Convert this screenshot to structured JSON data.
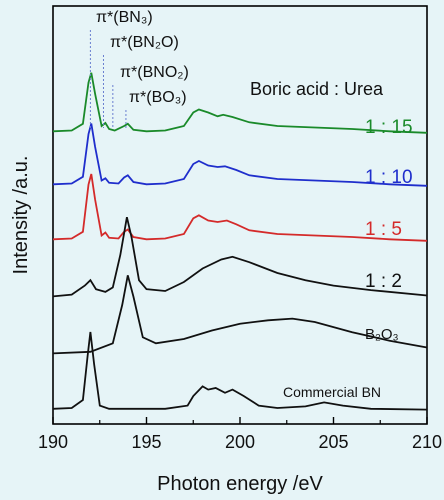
{
  "chart_data": {
    "type": "line",
    "xlabel": "Photon energy /eV",
    "ylabel": "Intensity /a.u.",
    "xlim": [
      190,
      210
    ],
    "xticks": [
      "190",
      "195",
      "200",
      "205",
      "210"
    ],
    "yticks": "none",
    "grid": false,
    "legend_title": "Boric acid : Urea",
    "peak_annotations": [
      {
        "text": "π*(BN₃)",
        "x": 192.0
      },
      {
        "text": "π*(BN₂O)",
        "x": 192.7
      },
      {
        "text": "π*(BNO₂)",
        "x": 193.2
      },
      {
        "text": "π*(BO₃)",
        "x": 193.9
      }
    ],
    "series": [
      {
        "name": "1 : 15",
        "color": "#1a8a2a",
        "points": [
          [
            190,
            0.05
          ],
          [
            191,
            0.06
          ],
          [
            191.6,
            0.15
          ],
          [
            191.9,
            0.7
          ],
          [
            192.05,
            0.83
          ],
          [
            192.25,
            0.55
          ],
          [
            192.6,
            0.12
          ],
          [
            192.8,
            0.16
          ],
          [
            193.0,
            0.08
          ],
          [
            193.3,
            0.06
          ],
          [
            193.8,
            0.12
          ],
          [
            194.0,
            0.15
          ],
          [
            194.3,
            0.07
          ],
          [
            195,
            0.05
          ],
          [
            196,
            0.06
          ],
          [
            197,
            0.12
          ],
          [
            197.5,
            0.3
          ],
          [
            197.8,
            0.34
          ],
          [
            198.3,
            0.3
          ],
          [
            198.8,
            0.25
          ],
          [
            199.1,
            0.27
          ],
          [
            199.6,
            0.24
          ],
          [
            200.5,
            0.17
          ],
          [
            202,
            0.12
          ],
          [
            204,
            0.1
          ],
          [
            206,
            0.08
          ],
          [
            208,
            0.05
          ],
          [
            210,
            0.03
          ]
        ]
      },
      {
        "name": "1 : 10",
        "color": "#1f2ecc",
        "points": [
          [
            190,
            0.05
          ],
          [
            191,
            0.06
          ],
          [
            191.6,
            0.15
          ],
          [
            191.9,
            0.72
          ],
          [
            192.05,
            0.86
          ],
          [
            192.25,
            0.55
          ],
          [
            192.6,
            0.1
          ],
          [
            192.8,
            0.13
          ],
          [
            193.0,
            0.07
          ],
          [
            193.5,
            0.06
          ],
          [
            193.8,
            0.14
          ],
          [
            194.0,
            0.17
          ],
          [
            194.3,
            0.08
          ],
          [
            195,
            0.05
          ],
          [
            196,
            0.06
          ],
          [
            197,
            0.12
          ],
          [
            197.5,
            0.32
          ],
          [
            197.8,
            0.36
          ],
          [
            198.3,
            0.3
          ],
          [
            198.8,
            0.28
          ],
          [
            199.2,
            0.29
          ],
          [
            199.8,
            0.24
          ],
          [
            200.5,
            0.17
          ],
          [
            202,
            0.12
          ],
          [
            204,
            0.1
          ],
          [
            206,
            0.08
          ],
          [
            208,
            0.05
          ],
          [
            210,
            0.03
          ]
        ]
      },
      {
        "name": "1 : 5",
        "color": "#d42a2a",
        "points": [
          [
            190,
            0.05
          ],
          [
            191,
            0.06
          ],
          [
            191.6,
            0.15
          ],
          [
            191.9,
            0.78
          ],
          [
            192.05,
            0.92
          ],
          [
            192.25,
            0.58
          ],
          [
            192.6,
            0.1
          ],
          [
            192.8,
            0.14
          ],
          [
            193.0,
            0.07
          ],
          [
            193.5,
            0.06
          ],
          [
            193.8,
            0.15
          ],
          [
            194.0,
            0.18
          ],
          [
            194.3,
            0.08
          ],
          [
            195,
            0.05
          ],
          [
            196,
            0.06
          ],
          [
            197,
            0.12
          ],
          [
            197.5,
            0.33
          ],
          [
            197.8,
            0.37
          ],
          [
            198.3,
            0.3
          ],
          [
            198.8,
            0.28
          ],
          [
            199.3,
            0.3
          ],
          [
            199.8,
            0.25
          ],
          [
            200.5,
            0.17
          ],
          [
            202,
            0.12
          ],
          [
            204,
            0.1
          ],
          [
            206,
            0.08
          ],
          [
            208,
            0.05
          ],
          [
            210,
            0.03
          ]
        ]
      },
      {
        "name": "1 : 2",
        "color": "#111111",
        "points": [
          [
            190,
            0.04
          ],
          [
            191,
            0.06
          ],
          [
            191.7,
            0.16
          ],
          [
            192.0,
            0.22
          ],
          [
            192.3,
            0.12
          ],
          [
            192.8,
            0.09
          ],
          [
            193.2,
            0.14
          ],
          [
            193.6,
            0.5
          ],
          [
            193.95,
            0.92
          ],
          [
            194.2,
            0.7
          ],
          [
            194.6,
            0.22
          ],
          [
            195,
            0.12
          ],
          [
            196,
            0.1
          ],
          [
            197,
            0.2
          ],
          [
            198,
            0.35
          ],
          [
            199,
            0.45
          ],
          [
            199.6,
            0.48
          ],
          [
            200.5,
            0.42
          ],
          [
            202,
            0.3
          ],
          [
            203.5,
            0.22
          ],
          [
            205,
            0.16
          ],
          [
            207,
            0.11
          ],
          [
            210,
            0.05
          ]
        ]
      },
      {
        "name": "B₂O₃",
        "color": "#111111",
        "points": [
          [
            190,
            0.03
          ],
          [
            192,
            0.05
          ],
          [
            193.2,
            0.15
          ],
          [
            193.7,
            0.6
          ],
          [
            194.0,
            0.95
          ],
          [
            194.3,
            0.7
          ],
          [
            194.8,
            0.22
          ],
          [
            195.5,
            0.15
          ],
          [
            197,
            0.2
          ],
          [
            198.5,
            0.3
          ],
          [
            200,
            0.38
          ],
          [
            201.5,
            0.42
          ],
          [
            202.8,
            0.44
          ],
          [
            204,
            0.4
          ],
          [
            206,
            0.28
          ],
          [
            208,
            0.18
          ],
          [
            210,
            0.1
          ]
        ]
      },
      {
        "name": "Commercial BN",
        "color": "#111111",
        "points": [
          [
            190,
            0.04
          ],
          [
            191,
            0.05
          ],
          [
            191.6,
            0.15
          ],
          [
            191.85,
            0.7
          ],
          [
            192.0,
            1.0
          ],
          [
            192.2,
            0.6
          ],
          [
            192.5,
            0.08
          ],
          [
            193,
            0.04
          ],
          [
            196,
            0.04
          ],
          [
            197.2,
            0.08
          ],
          [
            197.5,
            0.2
          ],
          [
            198.0,
            0.32
          ],
          [
            198.3,
            0.28
          ],
          [
            198.7,
            0.3
          ],
          [
            199.2,
            0.24
          ],
          [
            199.6,
            0.28
          ],
          [
            200.2,
            0.2
          ],
          [
            201,
            0.08
          ],
          [
            202,
            0.05
          ],
          [
            203.5,
            0.07
          ],
          [
            204.5,
            0.12
          ],
          [
            205.5,
            0.08
          ],
          [
            207,
            0.04
          ],
          [
            210,
            0.03
          ]
        ]
      }
    ]
  }
}
